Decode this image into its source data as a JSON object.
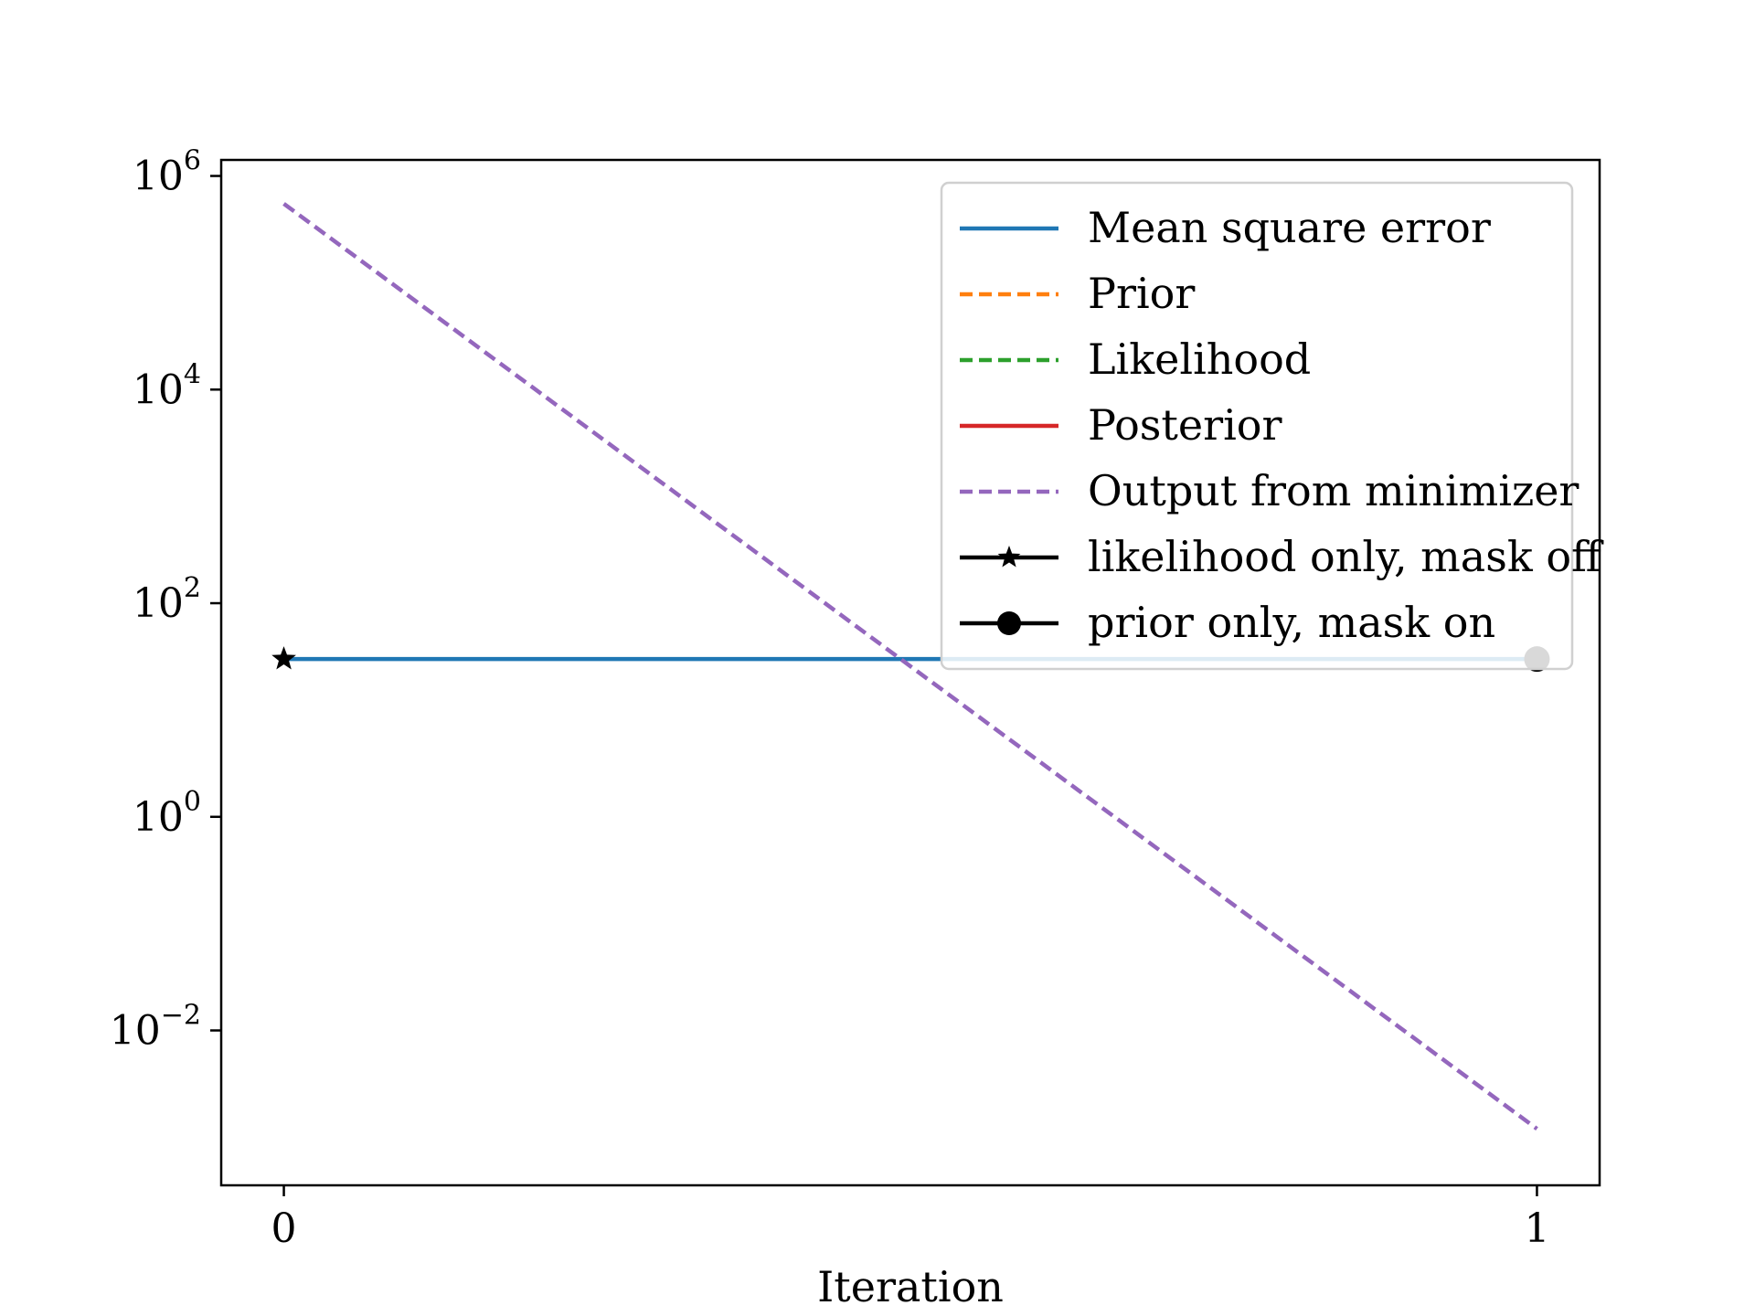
{
  "chart_data": {
    "type": "line",
    "xlabel": "Iteration",
    "ylabel": "",
    "title": "",
    "yscale": "log",
    "xlim": [
      -0.05,
      1.05
    ],
    "ylim_log10": [
      -3.45,
      6.15
    ],
    "x_ticks": [
      {
        "value": 0,
        "label": "0"
      },
      {
        "value": 1,
        "label": "1"
      }
    ],
    "y_ticks": [
      {
        "exp": -2,
        "base": "10",
        "sup": "−2"
      },
      {
        "exp": 0,
        "base": "10",
        "sup": "0"
      },
      {
        "exp": 2,
        "base": "10",
        "sup": "2"
      },
      {
        "exp": 4,
        "base": "10",
        "sup": "4"
      },
      {
        "exp": 6,
        "base": "10",
        "sup": "6"
      }
    ],
    "series": [
      {
        "name": "Mean square error",
        "color": "#1f77b4",
        "dash": "solid",
        "x": [
          0,
          1
        ],
        "y": [
          30,
          30
        ]
      },
      {
        "name": "Prior",
        "color": "#ff7f0e",
        "dash": "dashed",
        "x": [],
        "y": []
      },
      {
        "name": "Likelihood",
        "color": "#2ca02c",
        "dash": "dashed",
        "x": [],
        "y": []
      },
      {
        "name": "Posterior",
        "color": "#d62728",
        "dash": "solid",
        "x": [],
        "y": []
      },
      {
        "name": "Output from minimizer",
        "color": "#9467bd",
        "dash": "dashed",
        "x": [
          0,
          1
        ],
        "y": [
          550000,
          0.0012
        ]
      }
    ],
    "markers": [
      {
        "name": "likelihood only, mask off",
        "marker": "star",
        "color": "#000000",
        "x": 0,
        "y": 30
      },
      {
        "name": "prior only, mask on",
        "marker": "circle",
        "color": "#000000",
        "x": 1,
        "y": 30
      }
    ],
    "legend": {
      "position": "top-right",
      "entries": [
        {
          "label": "Mean square error",
          "color": "#1f77b4",
          "dash": "solid",
          "marker": "none"
        },
        {
          "label": "Prior",
          "color": "#ff7f0e",
          "dash": "dashed",
          "marker": "none"
        },
        {
          "label": "Likelihood",
          "color": "#2ca02c",
          "dash": "dashed",
          "marker": "none"
        },
        {
          "label": "Posterior",
          "color": "#d62728",
          "dash": "solid",
          "marker": "none"
        },
        {
          "label": "Output from minimizer",
          "color": "#9467bd",
          "dash": "dashed",
          "marker": "none"
        },
        {
          "label": "likelihood only, mask off",
          "color": "#000000",
          "dash": "solid",
          "marker": "star"
        },
        {
          "label": "prior only, mask on",
          "color": "#000000",
          "dash": "solid",
          "marker": "circle"
        }
      ]
    }
  }
}
